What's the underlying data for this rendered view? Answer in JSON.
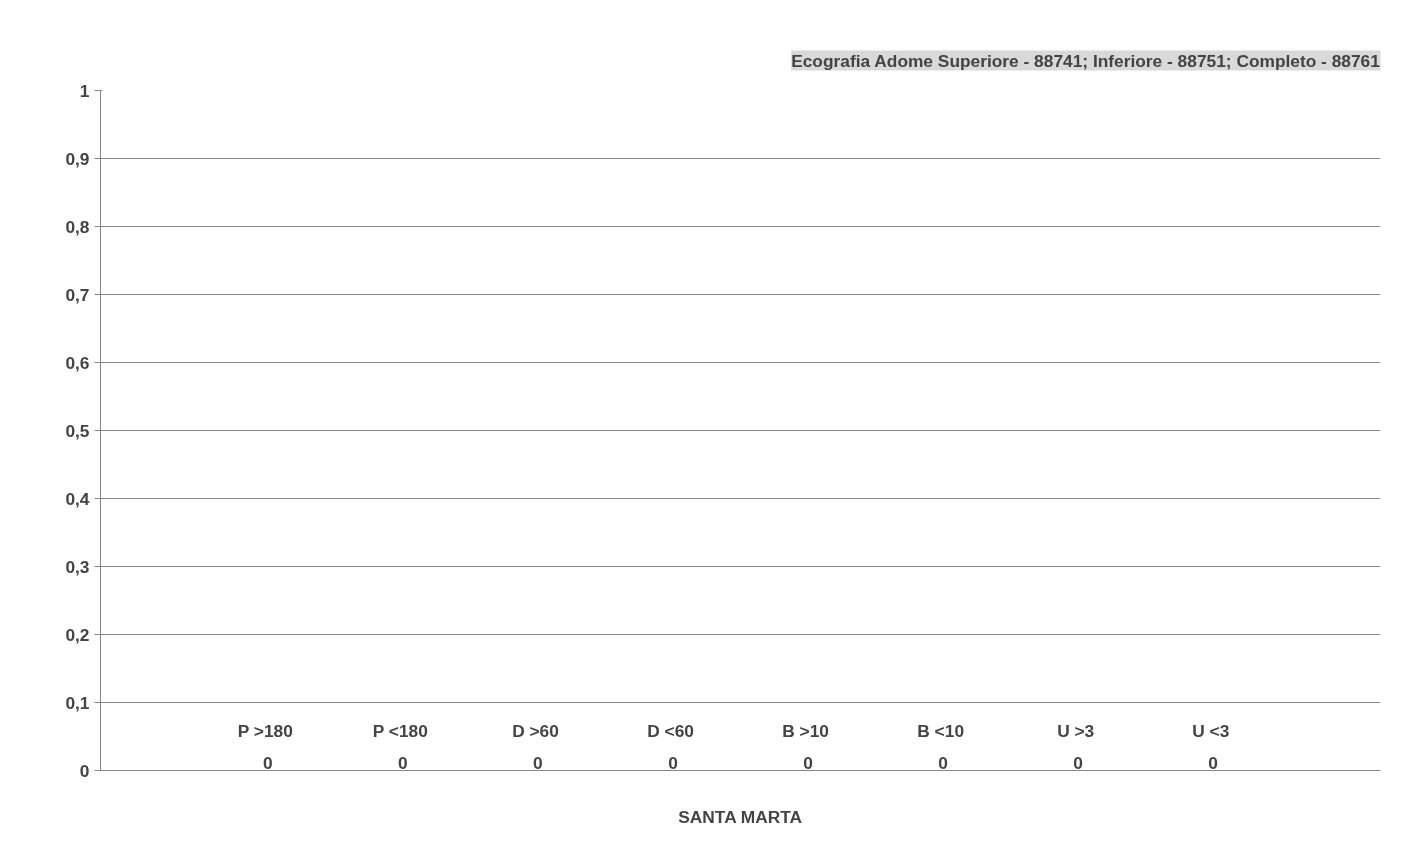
{
  "chart_data": {
    "type": "bar",
    "title": "Ecografia Adome Superiore - 88741; Inferiore - 88751; Completo - 88761",
    "categories": [
      "SANTA MARTA"
    ],
    "series": [
      {
        "name": "P  >180",
        "values": [
          0
        ]
      },
      {
        "name": "P  <180",
        "values": [
          0
        ]
      },
      {
        "name": "D  >60",
        "values": [
          0
        ]
      },
      {
        "name": "D  <60",
        "values": [
          0
        ]
      },
      {
        "name": "B  >10",
        "values": [
          0
        ]
      },
      {
        "name": "B  <10",
        "values": [
          0
        ]
      },
      {
        "name": "U  >3",
        "values": [
          0
        ]
      },
      {
        "name": "U  <3",
        "values": [
          0
        ]
      }
    ],
    "ylim": [
      0,
      1
    ],
    "yticks": [
      0,
      {
        "value": 0.1,
        "label": "0,1"
      },
      {
        "value": 0.2,
        "label": "0,2"
      },
      {
        "value": 0.3,
        "label": "0,3"
      },
      {
        "value": 0.4,
        "label": "0,4"
      },
      {
        "value": 0.5,
        "label": "0,5"
      },
      {
        "value": 0.6,
        "label": "0,6"
      },
      {
        "value": 0.7,
        "label": "0,7"
      },
      {
        "value": 0.8,
        "label": "0,8"
      },
      {
        "value": 0.9,
        "label": "0,9"
      },
      1
    ],
    "grid": "y",
    "data_labels": true
  }
}
